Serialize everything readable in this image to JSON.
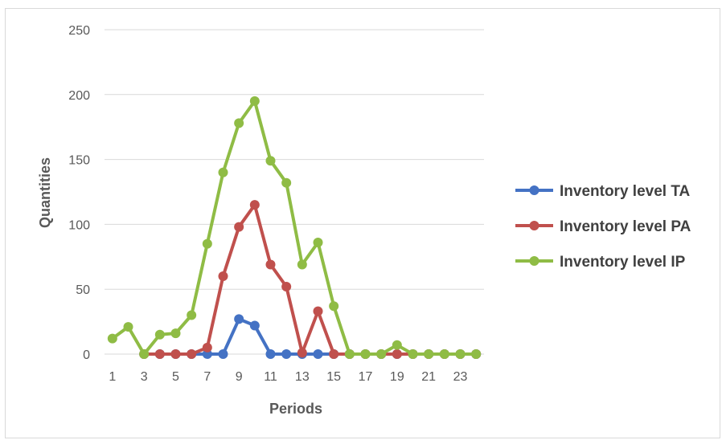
{
  "chart_data": {
    "type": "line",
    "title": "",
    "xlabel": "Periods",
    "ylabel": "Quantities",
    "x": [
      1,
      2,
      3,
      4,
      5,
      6,
      7,
      8,
      9,
      10,
      11,
      12,
      13,
      14,
      15,
      16,
      17,
      18,
      19,
      20,
      21,
      22,
      23,
      24
    ],
    "x_tick_labels": [
      "1",
      "3",
      "5",
      "7",
      "9",
      "11",
      "13",
      "15",
      "17",
      "19",
      "21",
      "23"
    ],
    "y_ticks": [
      "0",
      "50",
      "100",
      "150",
      "200",
      "250"
    ],
    "ylim": [
      0,
      250
    ],
    "grid": true,
    "legend_position": "right",
    "series": [
      {
        "name": "Inventory level TA",
        "color": "#4472c4",
        "values": [
          null,
          null,
          0,
          0,
          0,
          0,
          0,
          0,
          27,
          22,
          0,
          0,
          0,
          0,
          0,
          0,
          0,
          0,
          0,
          0,
          0,
          0,
          0,
          0
        ]
      },
      {
        "name": "Inventory level PA",
        "color": "#c0504d",
        "values": [
          null,
          null,
          0,
          0,
          0,
          0,
          5,
          60,
          98,
          115,
          69,
          52,
          1,
          33,
          0,
          0,
          0,
          0,
          0,
          0,
          0,
          0,
          0,
          0
        ]
      },
      {
        "name": "Inventory level IP",
        "color": "#8fbc45",
        "values": [
          12,
          21,
          0,
          15,
          16,
          30,
          85,
          140,
          178,
          195,
          149,
          132,
          69,
          86,
          37,
          0,
          0,
          0,
          7,
          0,
          0,
          0,
          0,
          0
        ]
      }
    ]
  }
}
